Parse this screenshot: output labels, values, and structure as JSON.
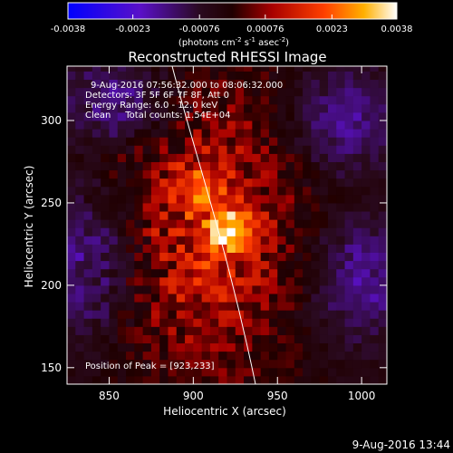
{
  "chart_data": {
    "type": "heatmap",
    "title": "Reconstructed RHESSI Image",
    "xlabel": "Heliocentric X (arcsec)",
    "ylabel": "Heliocentric Y (arcsec)",
    "xlim": [
      825,
      1015
    ],
    "ylim": [
      140,
      333
    ],
    "x_ticks": [
      850,
      900,
      950,
      1000
    ],
    "y_ticks": [
      150,
      200,
      250,
      300
    ],
    "colorbar": {
      "range": [
        -0.0038,
        0.0038
      ],
      "tick_values": [
        -0.0038,
        -0.0023,
        -0.00076,
        0.00076,
        0.0023,
        0.0038
      ],
      "tick_labels": [
        "-0.0038",
        "-0.0023",
        "-0.00076",
        "0.00076",
        "0.0023",
        "0.0038"
      ],
      "units_text": "(photons cm",
      "units_exp1": "-2",
      "units_mid": " s",
      "units_exp2": "-1",
      "units_mid2": " asec",
      "units_exp3": "-2",
      "units_end": ")"
    },
    "annotations": [
      "9-Aug-2016 07:56:32.000 to 08:06:32.000",
      "Detectors: 3F 5F 6F 7F 8F, Att 0",
      "Energy Range: 6.0 - 12.0 keV",
      "Clean     Total counts: 1.54E+04"
    ],
    "peak_text": "Position of Peak = [923,233]",
    "peak": [
      923,
      233
    ],
    "secondary_peak": [
      903,
      260
    ]
  },
  "footer": {
    "timestamp": "9-Aug-2016 13:44"
  }
}
